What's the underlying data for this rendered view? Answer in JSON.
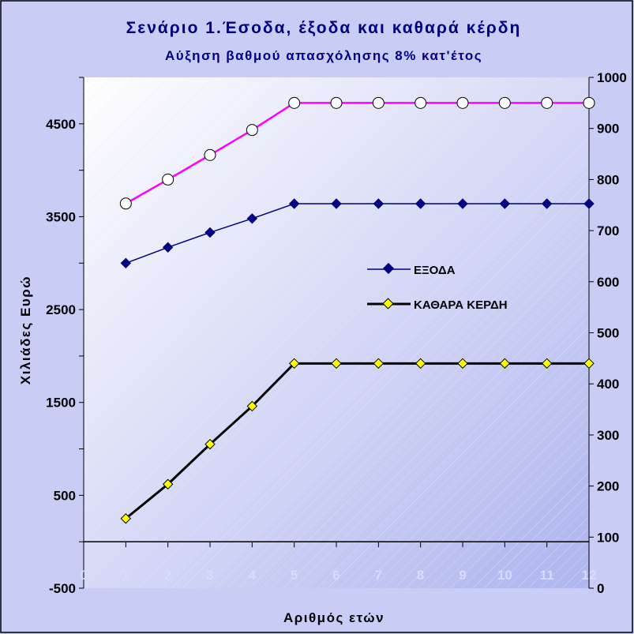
{
  "chart_data": {
    "type": "line",
    "title": "Σενάριο 1.Έσοδα, έξοδα και καθαρά κέρδη",
    "subtitle": "Αύξηση βαθμού απασχόλησης 8% κατ'έτος",
    "xlabel": "Αριθμός ετών",
    "ylabel": "Χιλιάδες Ευρώ",
    "x_ticks": [
      "0",
      "1",
      "2",
      "3",
      "4",
      "5",
      "6",
      "7",
      "8",
      "9",
      "10",
      "11",
      "12"
    ],
    "y_left_ticks": [
      "-500",
      "500",
      "1500",
      "2500",
      "3500",
      "4500"
    ],
    "y_right_ticks": [
      "0",
      "100",
      "200",
      "300",
      "400",
      "500",
      "600",
      "700",
      "800",
      "900",
      "1000"
    ],
    "ylim_left": [
      -500,
      5000
    ],
    "ylim_right": [
      0,
      1000
    ],
    "x": [
      1,
      2,
      3,
      4,
      5,
      6,
      7,
      8,
      9,
      10,
      11,
      12
    ],
    "series": [
      {
        "name": "",
        "axis": "right",
        "color": "#ff00ff",
        "marker": "circle",
        "values": [
          753,
          800,
          848,
          897,
          950,
          950,
          950,
          950,
          950,
          950,
          950,
          950
        ]
      },
      {
        "name": "ΕΞΟΔΑ",
        "axis": "left",
        "color": "#000080",
        "marker": "diamond",
        "values": [
          3000,
          3170,
          3330,
          3480,
          3640,
          3640,
          3640,
          3640,
          3640,
          3640,
          3640,
          3640
        ]
      },
      {
        "name": "ΚΑΘΑΡΑ ΚΕΡΔΗ",
        "axis": "left",
        "color": "#000000",
        "marker": "diamond-yellow",
        "values": [
          250,
          620,
          1050,
          1460,
          1920,
          1920,
          1920,
          1920,
          1920,
          1920,
          1920,
          1920
        ]
      }
    ],
    "legend": "center-right",
    "grid": false
  }
}
